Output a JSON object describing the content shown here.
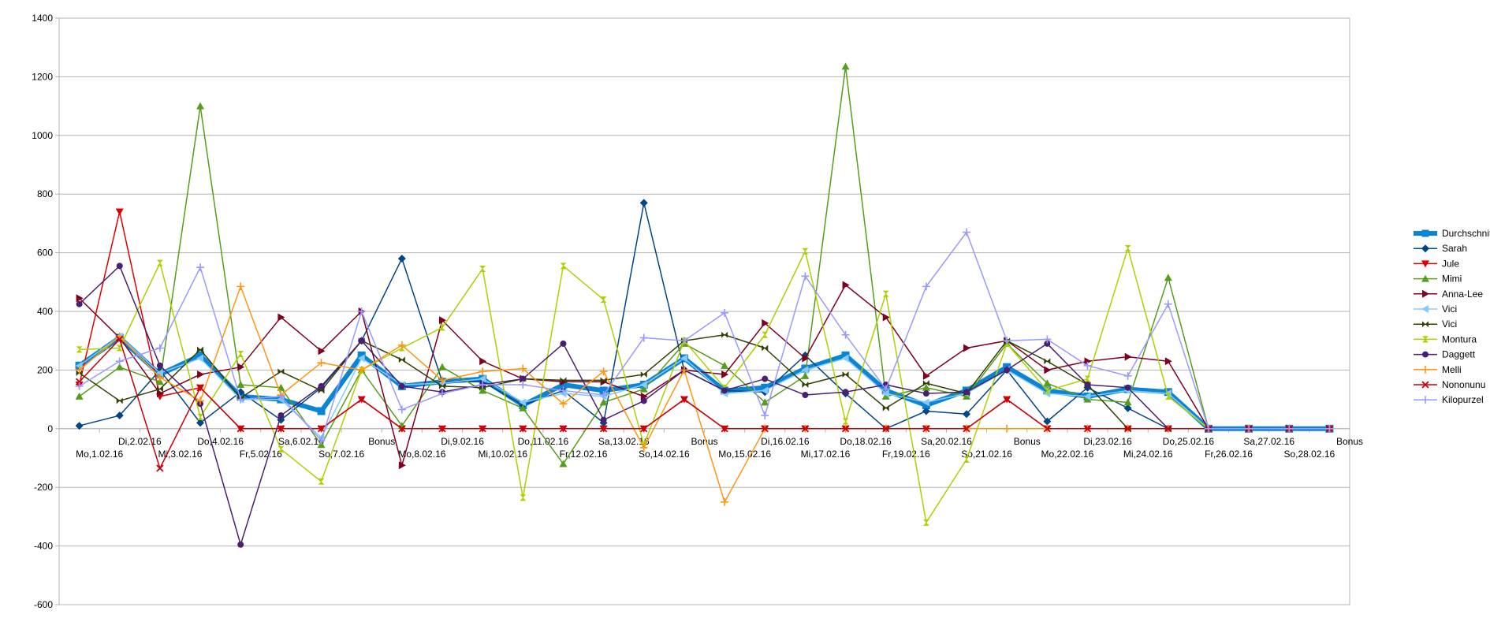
{
  "chart_data": {
    "type": "line",
    "title": "",
    "xlabel": "",
    "ylabel": "",
    "ylim": [
      -600,
      1400
    ],
    "ytick_step": 200,
    "grid": true,
    "legend_position": "right",
    "categories": [
      "Mo,1.02.16",
      "Di,2.02.16",
      "Mi,3.02.16",
      "Do,4.02.16",
      "Fr,5.02.16",
      "Sa,6.02.16",
      "So,7.02.16",
      "Bonus",
      "Mo,8.02.16",
      "Di,9.02.16",
      "Mi,10.02.16",
      "Do,11.02.16",
      "Fr,12.02.16",
      "Sa,13.02.16",
      "So,14.02.16",
      "Bonus",
      "Mo,15.02.16",
      "Di,16.02.16",
      "Mi,17.02.16",
      "Do,18.02.16",
      "Fr,19.02.16",
      "Sa,20.02.16",
      "So,21.02.16",
      "Bonus",
      "Mo,22.02.16",
      "Di,23.02.16",
      "Mi,24.02.16",
      "Do,25.02.16",
      "Fr,26.02.16",
      "Sa,27.02.16",
      "So,28.02.16",
      "Bonus"
    ],
    "series": [
      {
        "name": "Durchschnitt",
        "color": "#0b84d4",
        "marker": "square",
        "width": 6,
        "values": [
          215,
          310,
          185,
          250,
          110,
          100,
          60,
          250,
          145,
          160,
          170,
          80,
          150,
          130,
          150,
          240,
          130,
          140,
          205,
          250,
          130,
          80,
          130,
          210,
          130,
          110,
          135,
          125,
          0,
          0,
          0,
          0
        ]
      },
      {
        "name": "Sarah",
        "color": "#004586",
        "marker": "diamond",
        "width": 1.5,
        "values": [
          10,
          45,
          200,
          20,
          125,
          30,
          140,
          300,
          580,
          160,
          160,
          80,
          130,
          20,
          770,
          200,
          130,
          125,
          250,
          120,
          0,
          60,
          50,
          200,
          25,
          140,
          70,
          0,
          0,
          0,
          0,
          0
        ]
      },
      {
        "name": "Jule",
        "color": "#e00000",
        "marker": "triangle-down",
        "width": 1.5,
        "values": [
          150,
          740,
          110,
          140,
          0,
          0,
          0,
          100,
          0,
          0,
          0,
          0,
          0,
          0,
          0,
          100,
          0,
          0,
          0,
          0,
          0,
          0,
          0,
          100,
          0,
          0,
          0,
          0,
          0,
          0,
          0,
          0
        ]
      },
      {
        "name": "Mimi",
        "color": "#579d1c",
        "marker": "triangle-up",
        "width": 1.5,
        "values": [
          110,
          210,
          160,
          1100,
          150,
          140,
          -55,
          200,
          10,
          210,
          130,
          70,
          -120,
          90,
          135,
          290,
          215,
          90,
          180,
          1235,
          110,
          140,
          110,
          290,
          155,
          100,
          90,
          515,
          0,
          0,
          0,
          0
        ]
      },
      {
        "name": "Anna-Lee",
        "color": "#7e0021",
        "marker": "triangle-right",
        "width": 1.5,
        "values": [
          445,
          310,
          120,
          185,
          210,
          380,
          265,
          400,
          -125,
          370,
          230,
          170,
          160,
          160,
          110,
          200,
          185,
          360,
          240,
          490,
          380,
          180,
          275,
          300,
          200,
          230,
          245,
          230,
          0,
          0,
          0,
          0
        ]
      },
      {
        "name": "Vici",
        "color": "#83caff",
        "marker": "triangle-left",
        "width": 1.5,
        "values": [
          215,
          315,
          190,
          240,
          100,
          100,
          -30,
          240,
          150,
          155,
          170,
          90,
          120,
          110,
          150,
          240,
          120,
          130,
          200,
          240,
          120,
          90,
          120,
          200,
          120,
          110,
          130,
          120,
          0,
          0,
          0,
          0
        ]
      },
      {
        "name": "Vici",
        "color": "#314004",
        "marker": "bowtie",
        "width": 1.5,
        "values": [
          190,
          95,
          135,
          270,
          105,
          195,
          130,
          300,
          235,
          145,
          140,
          170,
          165,
          165,
          185,
          300,
          320,
          275,
          150,
          185,
          70,
          155,
          120,
          300,
          230,
          150,
          0,
          0,
          0,
          0,
          0,
          0
        ]
      },
      {
        "name": "Montura",
        "color": "#aecf00",
        "marker": "hourglass",
        "width": 1.5,
        "values": [
          270,
          275,
          565,
          40,
          255,
          -70,
          -180,
          200,
          275,
          345,
          545,
          -235,
          555,
          440,
          -55,
          300,
          140,
          320,
          605,
          25,
          460,
          -320,
          -105,
          290,
          130,
          170,
          615,
          110,
          0,
          0,
          0,
          0
        ]
      },
      {
        "name": "Daggett",
        "color": "#4b1f6f",
        "marker": "circle",
        "width": 1.5,
        "values": [
          425,
          555,
          215,
          85,
          -395,
          45,
          145,
          300,
          145,
          125,
          150,
          170,
          290,
          30,
          95,
          200,
          130,
          170,
          115,
          125,
          150,
          120,
          125,
          200,
          290,
          150,
          140,
          0,
          0,
          0,
          0,
          0
        ]
      },
      {
        "name": "Melli",
        "color": "#ff950e",
        "marker": "plus",
        "width": 1.5,
        "values": [
          200,
          315,
          175,
          95,
          485,
          115,
          225,
          200,
          285,
          165,
          195,
          205,
          85,
          195,
          -65,
          200,
          -250,
          0,
          0,
          0,
          0,
          0,
          0,
          0,
          0,
          0,
          0,
          0,
          0,
          0,
          0,
          0
        ]
      },
      {
        "name": "Nononunu",
        "color": "#c5000b",
        "marker": "x",
        "width": 1.5,
        "values": [
          160,
          305,
          -135,
          140,
          0,
          0,
          0,
          100,
          0,
          0,
          0,
          0,
          0,
          0,
          0,
          100,
          0,
          0,
          0,
          0,
          0,
          0,
          0,
          100,
          0,
          0,
          0,
          0,
          0,
          0,
          0,
          0
        ]
      },
      {
        "name": "Kilopurzel",
        "color": "#9999ff",
        "marker": "plus",
        "width": 1.5,
        "values": [
          145,
          230,
          275,
          550,
          100,
          110,
          -40,
          400,
          65,
          120,
          150,
          150,
          130,
          115,
          310,
          300,
          395,
          45,
          520,
          320,
          135,
          485,
          670,
          300,
          305,
          215,
          180,
          425,
          0,
          0,
          0,
          0
        ]
      }
    ]
  }
}
